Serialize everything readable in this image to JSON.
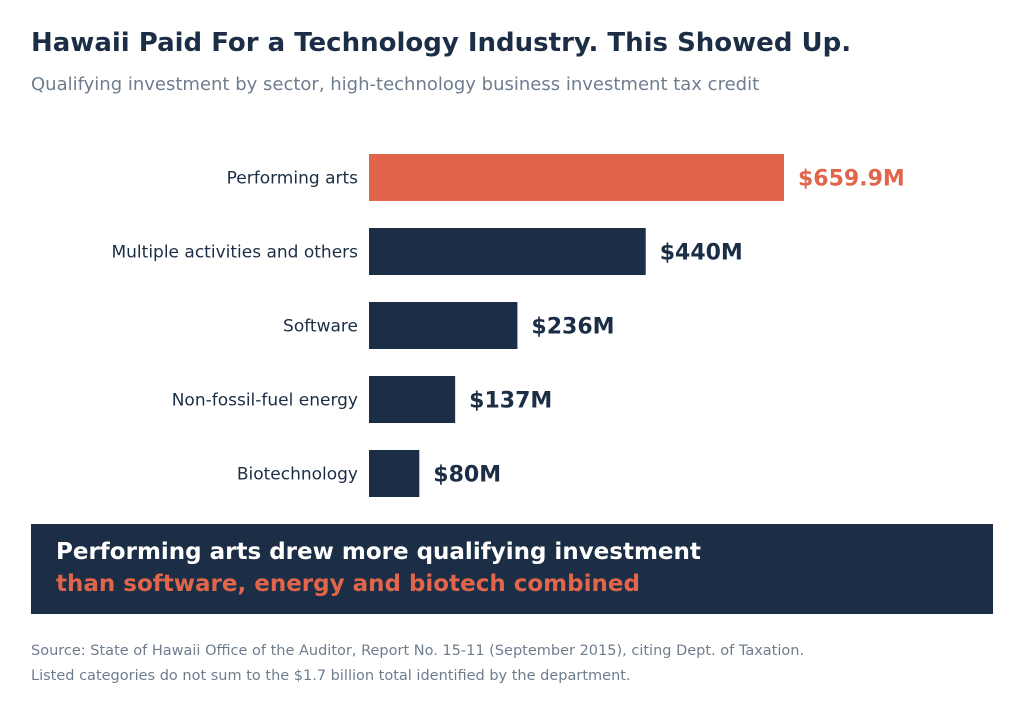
{
  "header": {
    "title": "Hawaii Paid For a Technology Industry. This Showed Up.",
    "subtitle": "Qualifying investment by sector, high-technology business investment tax credit"
  },
  "chart_data": {
    "type": "bar",
    "orientation": "horizontal",
    "categories": [
      "Performing arts",
      "Multiple activities and others",
      "Software",
      "Non-fossil-fuel energy",
      "Biotechnology"
    ],
    "values": [
      659.9,
      440,
      236,
      137,
      80
    ],
    "value_labels": [
      "$659.9M",
      "$440M",
      "$236M",
      "$137M",
      "$80M"
    ],
    "unit": "$M",
    "highlight_index": 0,
    "colors": {
      "highlight": "#e0654a",
      "default": "#1c2e45"
    },
    "grid": false,
    "legend": "none"
  },
  "callout": {
    "line1": "Performing arts drew more qualifying investment",
    "line2": "than software, energy and biotech combined"
  },
  "footer": {
    "source": "Source: State of Hawaii Office of the Auditor, Report No. 15-11 (September 2015), citing Dept. of Taxation.",
    "note": "Listed categories do not sum to the $1.7 billion total identified by the department."
  }
}
